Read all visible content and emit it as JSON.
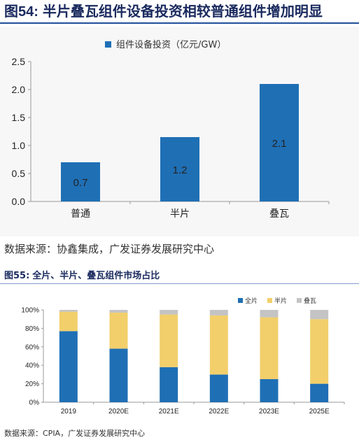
{
  "figure1": {
    "number": "图54",
    "colon": ":",
    "title": "半片叠瓦组件设备投资相较普通组件增加明显",
    "source": "数据来源：协鑫集成，广发证券发展研究中心"
  },
  "figure2": {
    "number": "图55",
    "colon": ":",
    "title": "全片、半片、叠瓦组件市场占比",
    "source": "数据来源：CPIA，广发证券发展研究中心"
  },
  "colors": {
    "bar_blue": "#1f6fb5",
    "full": "#1f6fb5",
    "half": "#f2cf6b",
    "shingled": "#c4c4c4",
    "axis": "#9a9a9a"
  },
  "chart_data": [
    {
      "type": "bar",
      "categories": [
        "普通",
        "半片",
        "叠瓦"
      ],
      "series": [
        {
          "name": "组件设备投资（亿元/GW）",
          "values": [
            0.7,
            1.15,
            2.1
          ]
        }
      ],
      "data_labels": [
        "0.7",
        "1.2",
        "2.1"
      ],
      "ylim": [
        0,
        2.5
      ],
      "yticks": [
        "0.0",
        "0.5",
        "1.0",
        "1.5",
        "2.0",
        "2.5"
      ],
      "ytick_values": [
        0,
        0.5,
        1.0,
        1.5,
        2.0,
        2.5
      ],
      "legend": "top",
      "grid": false
    },
    {
      "type": "bar",
      "stacked": true,
      "categories": [
        "2019",
        "2020E",
        "2021E",
        "2022E",
        "2023E",
        "2025E"
      ],
      "series": [
        {
          "name": "全片",
          "values": [
            77,
            58,
            38,
            30,
            25,
            20
          ]
        },
        {
          "name": "半片",
          "values": [
            21,
            39,
            57,
            64,
            67,
            70
          ]
        },
        {
          "name": "叠瓦",
          "values": [
            2,
            3,
            5,
            6,
            8,
            10
          ]
        }
      ],
      "ylim": [
        0,
        100
      ],
      "yticks": [
        "0%",
        "20%",
        "40%",
        "60%",
        "80%",
        "100%"
      ],
      "ytick_values": [
        0,
        20,
        40,
        60,
        80,
        100
      ],
      "legend": "top-right",
      "grid": false
    }
  ]
}
